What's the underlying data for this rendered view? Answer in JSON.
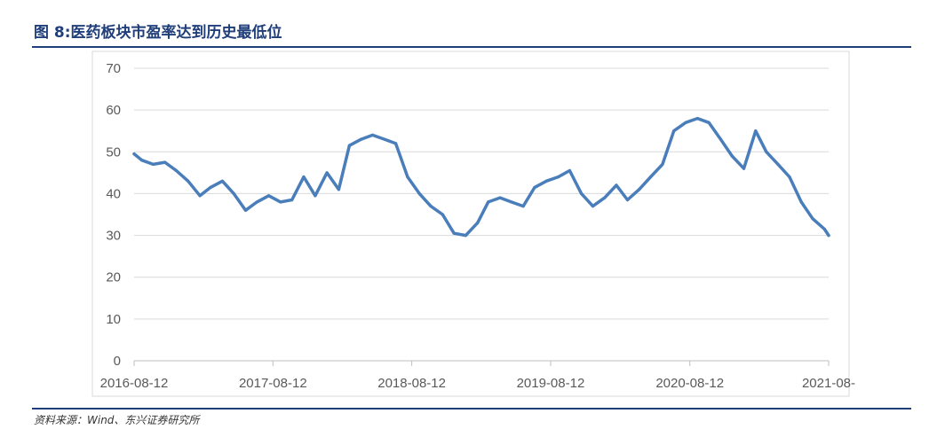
{
  "figure": {
    "title": "图 8:医药板块市盈率达到历史最低位",
    "source": "资料来源：Wind、东兴证券研究所"
  },
  "chart_data": {
    "type": "line",
    "title": "",
    "xlabel": "",
    "ylabel": "",
    "ylim": [
      0,
      70
    ],
    "yticks": [
      "0",
      "10",
      "20",
      "30",
      "40",
      "50",
      "60",
      "70"
    ],
    "xticks": [
      "2016-08-12",
      "2017-08-12",
      "2018-08-12",
      "2019-08-12",
      "2020-08-12",
      "2021-08-"
    ],
    "grid": "horizontal",
    "legend": "none",
    "line_color": "#4a7ebb",
    "series": [
      {
        "x": [
          "2016-08-12",
          "2016-09-01",
          "2016-10-01",
          "2016-11-01",
          "2016-12-01",
          "2017-01-01",
          "2017-02-01",
          "2017-03-01",
          "2017-04-01",
          "2017-05-01",
          "2017-06-01",
          "2017-07-01",
          "2017-08-01",
          "2017-09-01",
          "2017-10-01",
          "2017-11-01",
          "2017-12-01",
          "2018-01-01",
          "2018-02-01",
          "2018-03-01",
          "2018-04-01",
          "2018-05-01",
          "2018-06-01",
          "2018-07-01",
          "2018-08-01",
          "2018-09-01",
          "2018-10-01",
          "2018-11-01",
          "2018-12-01",
          "2019-01-01",
          "2019-02-01",
          "2019-03-01",
          "2019-04-01",
          "2019-05-01",
          "2019-06-01",
          "2019-07-01",
          "2019-08-01",
          "2019-09-01",
          "2019-10-01",
          "2019-11-01",
          "2019-12-01",
          "2020-01-01",
          "2020-02-01",
          "2020-03-01",
          "2020-04-01",
          "2020-05-01",
          "2020-06-01",
          "2020-07-01",
          "2020-08-01",
          "2020-09-01",
          "2020-10-01",
          "2020-11-01",
          "2020-12-01",
          "2021-01-01",
          "2021-02-01",
          "2021-03-01",
          "2021-04-01",
          "2021-05-01",
          "2021-06-01",
          "2021-07-01",
          "2021-08-01",
          "2021-08-12"
        ],
        "values": [
          49.5,
          48,
          47,
          47.5,
          45.5,
          43,
          39.5,
          41.5,
          43,
          40,
          36,
          38,
          39.5,
          38,
          38.5,
          44,
          39.5,
          45,
          41,
          51.5,
          53,
          54,
          53,
          52,
          44,
          40,
          37,
          35,
          30.5,
          30,
          33,
          38,
          39,
          38,
          37,
          41.5,
          43,
          44,
          45.5,
          40,
          37,
          39,
          42,
          38.5,
          41,
          44,
          47,
          55,
          57,
          58,
          57,
          53,
          49,
          46,
          55,
          50,
          47,
          44,
          38,
          34,
          31.5,
          30
        ]
      }
    ]
  }
}
